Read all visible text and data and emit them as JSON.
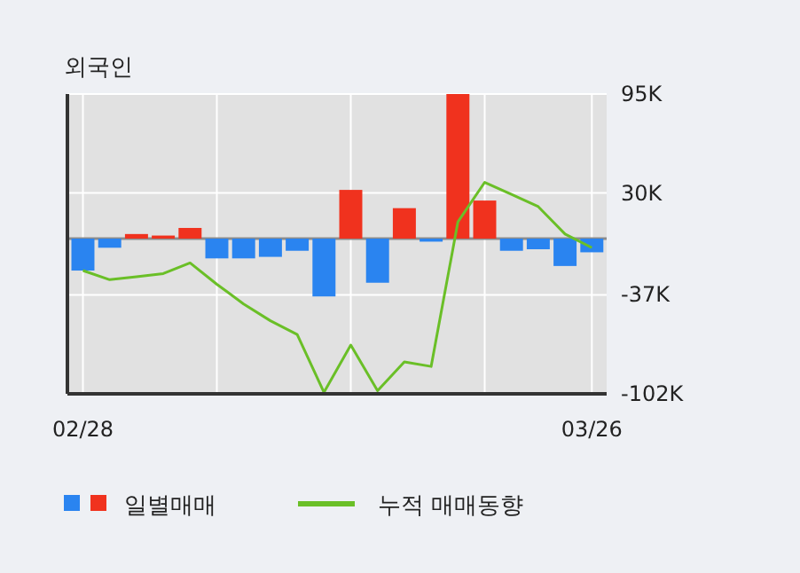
{
  "chart_data": {
    "type": "bar",
    "title": "외국인",
    "categories": [
      "02/28",
      null,
      null,
      null,
      null,
      null,
      null,
      null,
      null,
      null,
      null,
      null,
      null,
      null,
      null,
      null,
      null,
      null,
      null,
      "03/26"
    ],
    "series": [
      {
        "name": "일별매매",
        "colors": [
          "#2a84f0",
          "#2a84f0",
          "#f0321e",
          "#f0321e",
          "#f0321e",
          "#2a84f0",
          "#2a84f0",
          "#2a84f0",
          "#2a84f0",
          "#2a84f0",
          "#f0321e",
          "#2a84f0",
          "#f0321e",
          "#2a84f0",
          "#f0321e",
          "#f0321e",
          "#2a84f0",
          "#2a84f0",
          "#2a84f0",
          "#2a84f0"
        ],
        "values": [
          -21000,
          -6000,
          3000,
          2000,
          7000,
          -13000,
          -13000,
          -12000,
          -8000,
          -38000,
          32000,
          -29000,
          20000,
          -2000,
          95000,
          25000,
          -8000,
          -7000,
          -18000,
          -9000
        ]
      },
      {
        "name": "누적 매매동향",
        "type": "line",
        "color": "#6abf27",
        "values": [
          -21000,
          -27000,
          -25000,
          -23000,
          -16000,
          -30000,
          -43000,
          -54000,
          -63000,
          -101000,
          -70000,
          -100000,
          -81000,
          -84000,
          11000,
          37000,
          29000,
          21000,
          3000,
          -6000
        ]
      }
    ],
    "ylim": [
      -102000,
      95000
    ],
    "yticks": [
      {
        "value": 95000,
        "label": "95K"
      },
      {
        "value": 30000,
        "label": "30K"
      },
      {
        "value": -37000,
        "label": "-37K"
      },
      {
        "value": -102000,
        "label": "-102K"
      }
    ],
    "grid": true,
    "legend": "bottom"
  }
}
